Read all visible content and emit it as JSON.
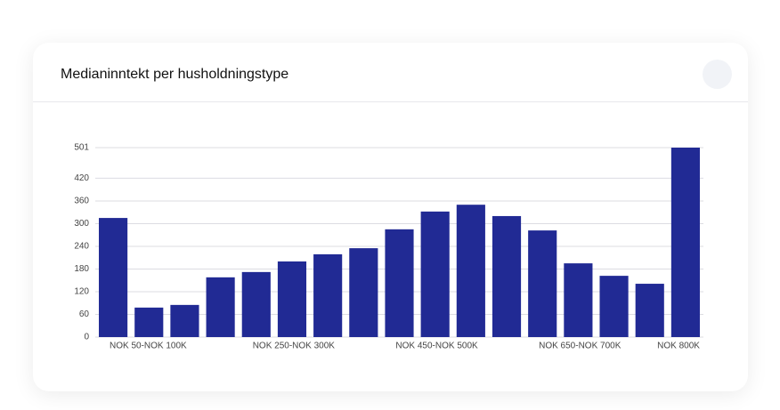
{
  "chart_data": {
    "type": "bar",
    "title": "Medianinntekt per husholdningstype",
    "categories": [
      "NOK 50-NOK 100K",
      null,
      null,
      null,
      "NOK 250-NOK 300K",
      null,
      null,
      null,
      "NOK 450-NOK 500K",
      null,
      null,
      null,
      "NOK 650-NOK 700K",
      null,
      null,
      null,
      "NOK 800K"
    ],
    "values": [
      315,
      78,
      85,
      158,
      172,
      200,
      219,
      235,
      285,
      332,
      350,
      320,
      282,
      195,
      162,
      141,
      501
    ],
    "color": "#212a94",
    "ylim": [
      0,
      501
    ],
    "yticks": [
      0,
      60,
      120,
      180,
      240,
      300,
      360,
      420,
      501
    ],
    "grid": true
  }
}
